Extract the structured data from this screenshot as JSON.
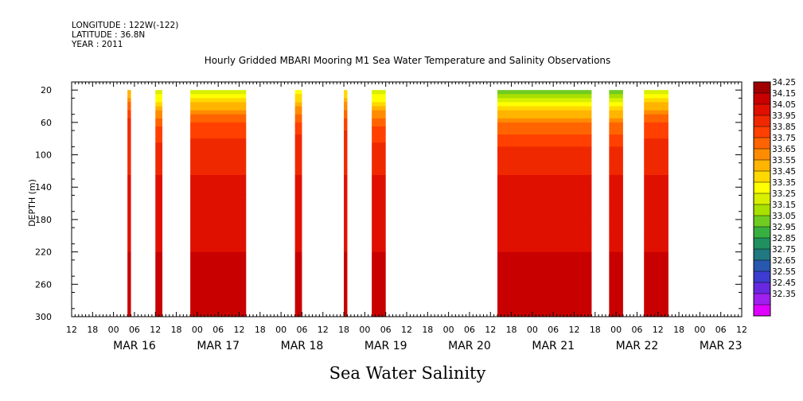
{
  "meta": {
    "longitude": "LONGITUDE : 122W(-122)",
    "latitude": "LATITUDE : 36.8N",
    "year": "YEAR : 2011"
  },
  "chart_data": {
    "type": "heatmap",
    "title": "Hourly Gridded MBARI Mooring M1 Sea Water Temperature and Salinity Observations",
    "bottom_title": "Sea Water Salinity",
    "ylabel": "DEPTH (m)",
    "xlabel": "",
    "xlim_hours": [
      -18,
      174
    ],
    "ylim": [
      300,
      10
    ],
    "x_ticks_hours": [
      "12",
      "18",
      "00",
      "06",
      "12",
      "18",
      "00",
      "06",
      "12",
      "18",
      "00",
      "06",
      "12",
      "18",
      "00",
      "06",
      "12",
      "18",
      "00",
      "06",
      "12",
      "18",
      "00",
      "06",
      "12",
      "18",
      "00",
      "06",
      "12",
      "18",
      "00",
      "06",
      "12"
    ],
    "x_day_labels": [
      "MAR 16",
      "MAR 17",
      "MAR 18",
      "MAR 19",
      "MAR 20",
      "MAR 21",
      "MAR 22",
      "MAR 23"
    ],
    "y_ticks": [
      20,
      60,
      100,
      140,
      180,
      220,
      260,
      300
    ],
    "colorbar": {
      "levels": [
        "34.25",
        "34.15",
        "34.05",
        "33.95",
        "33.85",
        "33.75",
        "33.65",
        "33.55",
        "33.45",
        "33.35",
        "33.25",
        "33.15",
        "33.05",
        "32.95",
        "32.85",
        "32.75",
        "32.65",
        "32.55",
        "32.45",
        "32.35"
      ],
      "colors": [
        "#a00000",
        "#c80000",
        "#e01000",
        "#f02800",
        "#ff4000",
        "#ff6400",
        "#ff8c00",
        "#ffb400",
        "#ffd800",
        "#ffff00",
        "#d8f000",
        "#a8e000",
        "#70cc20",
        "#38b040",
        "#209060",
        "#207880",
        "#2858b0",
        "#3c3cd0",
        "#6828e0",
        "#a020f0",
        "#e000ff"
      ]
    },
    "data_segments": [
      {
        "start": -2,
        "end": -1,
        "surface": 33.55
      },
      {
        "start": 6,
        "end": 8,
        "surface": 33.25
      },
      {
        "start": 16,
        "end": 32,
        "surface": 33.3
      },
      {
        "start": 46,
        "end": 48,
        "surface": 33.35
      },
      {
        "start": 60,
        "end": 61,
        "surface": 33.45
      },
      {
        "start": 68,
        "end": 72,
        "surface": 33.25
      },
      {
        "start": 104,
        "end": 131,
        "surface": 33.1
      },
      {
        "start": 136,
        "end": 140,
        "surface": 33.1
      },
      {
        "start": 146,
        "end": 153,
        "surface": 33.3
      }
    ],
    "salinity_profile": [
      {
        "depth": 20,
        "value": 33.3
      },
      {
        "depth": 40,
        "value": 33.6
      },
      {
        "depth": 60,
        "value": 33.85
      },
      {
        "depth": 80,
        "value": 33.95
      },
      {
        "depth": 100,
        "value": 34.0
      },
      {
        "depth": 140,
        "value": 34.08
      },
      {
        "depth": 180,
        "value": 34.12
      },
      {
        "depth": 220,
        "value": 34.15
      },
      {
        "depth": 260,
        "value": 34.2
      },
      {
        "depth": 300,
        "value": 34.15
      }
    ]
  }
}
